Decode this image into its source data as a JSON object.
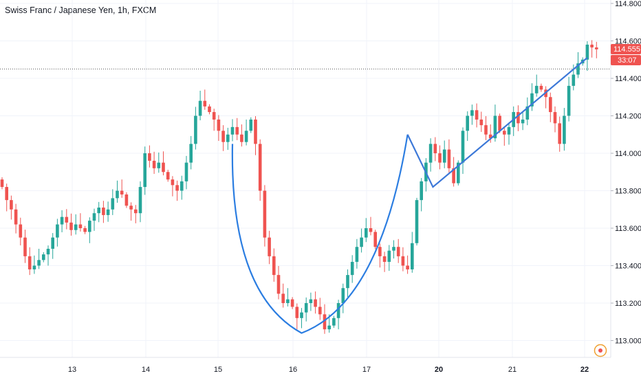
{
  "chart_title": "Swiss Franc / Japanese Yen, 1h, FXCM",
  "colors": {
    "up": "#26a69a",
    "down": "#ef5350",
    "drawing": "#2b7de1",
    "trend": "#3c78d8",
    "tag": "#ef5350"
  },
  "price_tags": {
    "last_price": "114.555",
    "countdown": "33:07"
  },
  "chart_data": {
    "type": "candlestick",
    "title": "Swiss Franc / Japanese Yen, 1h, FXCM",
    "x_ticks": [
      "13",
      "14",
      "15",
      "16",
      "17",
      "20",
      "21",
      "22"
    ],
    "y_ticks": [
      "114.800",
      "114.600",
      "114.400",
      "114.200",
      "114.000",
      "113.800",
      "113.600",
      "113.400",
      "113.200",
      "113.000"
    ],
    "ylim": [
      112.9,
      114.85
    ],
    "grid": true,
    "last_price": 114.555,
    "reference_level": 114.45,
    "closes": [
      113.82,
      113.75,
      113.7,
      113.62,
      113.55,
      113.45,
      113.38,
      113.4,
      113.43,
      113.46,
      113.49,
      113.55,
      113.62,
      113.66,
      113.63,
      113.59,
      113.62,
      113.6,
      113.58,
      113.64,
      113.68,
      113.71,
      113.67,
      113.7,
      113.76,
      113.8,
      113.78,
      113.72,
      113.7,
      113.68,
      113.82,
      114.0,
      113.96,
      113.92,
      113.95,
      113.9,
      113.86,
      113.83,
      113.8,
      113.85,
      113.95,
      114.05,
      114.2,
      114.28,
      114.25,
      114.22,
      114.18,
      114.12,
      114.06,
      114.1,
      114.14,
      114.1,
      114.06,
      114.12,
      114.18,
      114.05,
      113.8,
      113.55,
      113.45,
      113.35,
      113.25,
      113.2,
      113.22,
      113.18,
      113.12,
      113.15,
      113.2,
      113.22,
      113.18,
      113.14,
      113.06,
      113.08,
      113.12,
      113.2,
      113.28,
      113.35,
      113.42,
      113.5,
      113.55,
      113.6,
      113.58,
      113.5,
      113.45,
      113.42,
      113.48,
      113.5,
      113.45,
      113.4,
      113.38,
      113.52,
      113.75,
      113.85,
      113.95,
      114.05,
      114.0,
      113.95,
      114.02,
      113.92,
      113.84,
      113.95,
      114.12,
      114.2,
      114.23,
      114.18,
      114.15,
      114.1,
      114.08,
      114.2,
      114.12,
      114.1,
      114.14,
      114.22,
      114.16,
      114.18,
      114.25,
      114.32,
      114.36,
      114.34,
      114.3,
      114.22,
      114.16,
      114.05,
      114.2,
      114.36,
      114.42,
      114.48,
      114.5,
      114.58,
      114.565,
      114.555
    ]
  }
}
